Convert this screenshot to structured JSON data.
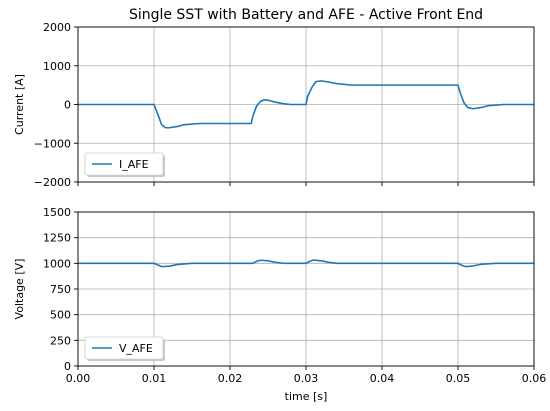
{
  "chart_data": [
    {
      "type": "line",
      "title": "Single SST with Battery and AFE - Active Front End",
      "xlabel": "",
      "ylabel": "Current [A]",
      "xlim": [
        0,
        0.06
      ],
      "ylim": [
        -2000,
        2000
      ],
      "xticks": [
        0,
        0.01,
        0.02,
        0.03,
        0.04,
        0.05,
        0.06
      ],
      "xtick_labels": [],
      "yticks": [
        -2000,
        -1000,
        0,
        1000,
        2000
      ],
      "ytick_labels": [
        "−2000",
        "−1000",
        "0",
        "1000",
        "2000"
      ],
      "grid": true,
      "legend_position": "lower-left",
      "series": [
        {
          "name": "I_AFE",
          "color": "#1f77b4",
          "x": [
            0,
            0.01,
            0.0105,
            0.011,
            0.0115,
            0.012,
            0.013,
            0.014,
            0.016,
            0.019,
            0.0228,
            0.023,
            0.0235,
            0.024,
            0.0245,
            0.025,
            0.026,
            0.027,
            0.028,
            0.03,
            0.0302,
            0.0308,
            0.0313,
            0.032,
            0.033,
            0.034,
            0.036,
            0.045,
            0.05,
            0.0503,
            0.0508,
            0.0513,
            0.052,
            0.053,
            0.054,
            0.056,
            0.06
          ],
          "y": [
            0,
            0,
            -250,
            -520,
            -600,
            -600,
            -570,
            -520,
            -490,
            -490,
            -490,
            -300,
            -40,
            80,
            120,
            110,
            60,
            20,
            0,
            0,
            200,
            450,
            590,
            610,
            580,
            540,
            500,
            500,
            500,
            300,
            40,
            -80,
            -110,
            -80,
            -30,
            0,
            0
          ]
        }
      ]
    },
    {
      "type": "line",
      "title": "",
      "xlabel": "time [s]",
      "ylabel": "Voltage [V]",
      "xlim": [
        0,
        0.06
      ],
      "ylim": [
        0,
        1500
      ],
      "xticks": [
        0,
        0.01,
        0.02,
        0.03,
        0.04,
        0.05,
        0.06
      ],
      "xtick_labels": [
        "0.00",
        "0.01",
        "0.02",
        "0.03",
        "0.04",
        "0.05",
        "0.06"
      ],
      "yticks": [
        0,
        250,
        500,
        750,
        1000,
        1250,
        1500
      ],
      "ytick_labels": [
        "0",
        "250",
        "500",
        "750",
        "1000",
        "1250",
        "1500"
      ],
      "grid": true,
      "legend_position": "lower-left",
      "series": [
        {
          "name": "V_AFE",
          "color": "#1f77b4",
          "x": [
            0,
            0.01,
            0.0105,
            0.011,
            0.012,
            0.013,
            0.015,
            0.023,
            0.0235,
            0.024,
            0.025,
            0.026,
            0.027,
            0.03,
            0.0305,
            0.031,
            0.032,
            0.033,
            0.034,
            0.05,
            0.0505,
            0.051,
            0.052,
            0.053,
            0.055,
            0.06
          ],
          "y": [
            1000,
            1000,
            985,
            968,
            972,
            988,
            1000,
            1000,
            1020,
            1030,
            1025,
            1010,
            1000,
            1000,
            1020,
            1032,
            1025,
            1010,
            1000,
            1000,
            980,
            968,
            975,
            990,
            1000,
            1000
          ]
        }
      ]
    }
  ]
}
